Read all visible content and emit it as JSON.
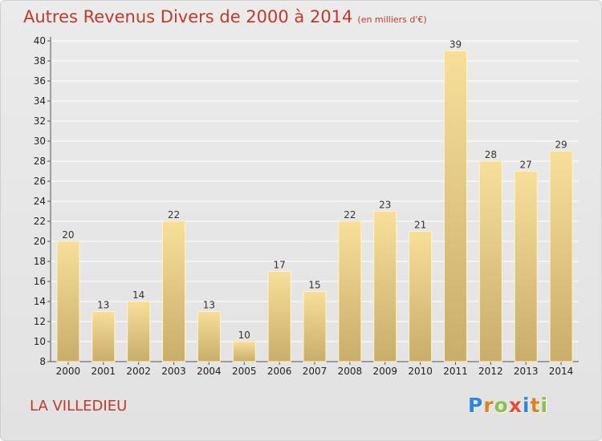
{
  "header": {
    "title": "Autres Revenus Divers de 2000 à 2014",
    "subtitle": "(en milliers d'€)"
  },
  "footer": {
    "commune": "LA VILLEDIEU",
    "logo_letters": [
      "P",
      "r",
      "o",
      "x",
      "i",
      "t",
      "i"
    ],
    "logo_colors": [
      "#2e86de",
      "#e67e22",
      "#8bc34a",
      "#e74c3c",
      "#2e86de",
      "#e67e22",
      "#8bc34a"
    ]
  },
  "colors": {
    "title": "#c0392b",
    "bar_light": "#f7df9a",
    "bar_dark": "#c9ad6a"
  },
  "chart_data": {
    "type": "bar",
    "title": "Autres Revenus Divers de 2000 à 2014",
    "subtitle": "(en milliers d'€)",
    "categories": [
      "2000",
      "2001",
      "2002",
      "2003",
      "2004",
      "2005",
      "2006",
      "2007",
      "2008",
      "2009",
      "2010",
      "2011",
      "2012",
      "2013",
      "2014"
    ],
    "values": [
      20,
      13,
      14,
      22,
      13,
      10,
      17,
      15,
      22,
      23,
      21,
      39,
      28,
      27,
      29
    ],
    "ylim": [
      8,
      40
    ],
    "yticks": [
      8,
      10,
      12,
      14,
      16,
      18,
      20,
      22,
      24,
      26,
      28,
      30,
      32,
      34,
      36,
      38,
      40
    ],
    "grid": true,
    "xlabel": "",
    "ylabel": ""
  }
}
